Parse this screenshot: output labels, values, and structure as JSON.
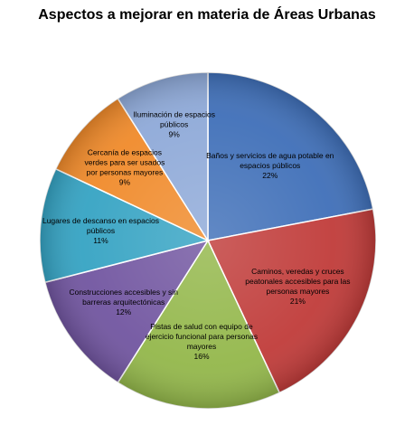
{
  "chart_data": {
    "type": "pie",
    "title": "Aspectos a mejorar en materia de Áreas Urbanas",
    "slices": [
      {
        "label": [
          "Baños y servicios de agua potable en",
          "espacios públicos"
        ],
        "percent_label": "22%",
        "value": 22,
        "color": "#3f6fb8"
      },
      {
        "label": [
          "Caminos, veredas y cruces",
          "peatonales accesibles para las",
          "personas mayores"
        ],
        "percent_label": "21%",
        "value": 21,
        "color": "#c03b39"
      },
      {
        "label": [
          "Pistas de salud con equipo de",
          "ejercicio funcional para personas",
          "mayores"
        ],
        "percent_label": "16%",
        "value": 16,
        "color": "#93b74a"
      },
      {
        "label": [
          "Construcciones accesibles y sin",
          "barreras arquitectónicas"
        ],
        "percent_label": "12%",
        "value": 12,
        "color": "#7155a0"
      },
      {
        "label": [
          "Lugares de descanso en espacios",
          "públicos"
        ],
        "percent_label": "11%",
        "value": 11,
        "color": "#35a3c3"
      },
      {
        "label": [
          "Cercanía de espacios",
          "verdes para ser usados",
          "por personas mayores"
        ],
        "percent_label": "9%",
        "value": 9,
        "color": "#f08a2a"
      },
      {
        "label": [
          "Iluminación de espacios",
          "públicos"
        ],
        "percent_label": "9%",
        "value": 9,
        "color": "#8ea9d8"
      }
    ],
    "legend": "none"
  }
}
